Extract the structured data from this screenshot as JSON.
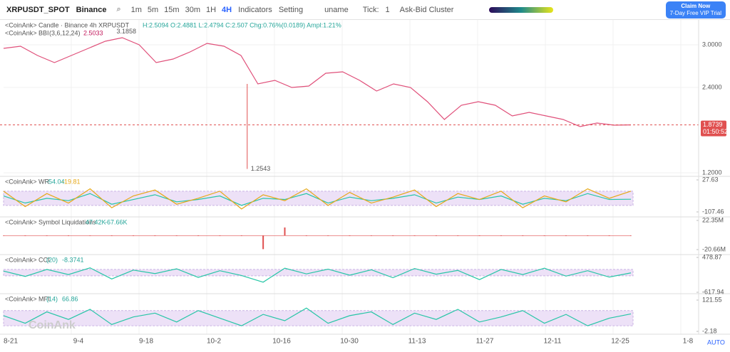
{
  "toolbar": {
    "symbol": "XRPUSDT_SPOT",
    "exchange": "Binance",
    "intervals": [
      "1m",
      "5m",
      "15m",
      "30m",
      "1H",
      "4H"
    ],
    "indicators": "Indicators",
    "setting": "Setting",
    "user": "uname",
    "tick_label": "Tick:",
    "tick_value": "1",
    "cluster": "Ask-Bid Cluster",
    "promo_title": "Claim Now",
    "promo_text": "7-Day Free VIP Trial"
  },
  "x_labels": [
    "8-21",
    "9-4",
    "9-18",
    "10-2",
    "10-16",
    "10-30",
    "11-13",
    "11-27",
    "12-11",
    "12-25",
    "1-8"
  ],
  "auto": "AUTO",
  "watermark": "CoinAnk",
  "chart_data": [
    {
      "type": "line",
      "legend": "<CoinAnk> Candle · Binance 4h XRPUSDT",
      "ohlc": "H:2.5094  O:2.4881  L:2.4794  C:2.507  Chg:0.76%(0.0189)  Ampl:1.21%",
      "bbi_legend": "<CoinAnk> BBI",
      "bbi_params": "(3,6,12,24)",
      "bbi_value": "2.5033",
      "ylim": [
        1.15,
        3.35
      ],
      "yticks": [
        {
          "value": 3,
          "label": "3.0000"
        },
        {
          "value": 2.4,
          "label": "2.4000"
        },
        {
          "value": 1.2,
          "label": "1.2000"
        }
      ],
      "series": [
        {
          "name": "XRPUSDT",
          "color": "#e0507a",
          "values": [
            2.95,
            2.98,
            2.85,
            2.75,
            2.85,
            2.95,
            3.05,
            3.1,
            3.0,
            2.75,
            2.8,
            2.9,
            3.02,
            2.98,
            2.85,
            2.45,
            2.5,
            2.4,
            2.42,
            2.6,
            2.62,
            2.5,
            2.35,
            2.45,
            2.4,
            2.2,
            1.95,
            2.15,
            2.2,
            2.15,
            2.0,
            2.05,
            2.0,
            1.95,
            1.85,
            1.9,
            1.87,
            1.8739
          ]
        }
      ],
      "high": {
        "value": 3.1858,
        "label": "3.1858"
      },
      "low": {
        "value": 1.2543,
        "label": "1.2543"
      },
      "last_price": 1.8739,
      "countdown": "01:50:52"
    },
    {
      "type": "line",
      "legend": "<CoinAnk> WR",
      "legend_values": [
        "-54.04",
        "-19.81"
      ],
      "ylim": [
        -107.46,
        27.63
      ],
      "yticks": [
        27.63,
        -107.46
      ],
      "band": [
        -80,
        -20
      ],
      "series": [
        {
          "name": "WR1",
          "color": "#26c6a6",
          "values": [
            -40,
            -70,
            -50,
            -60,
            -30,
            -75,
            -55,
            -35,
            -65,
            -55,
            -40,
            -80,
            -50,
            -55,
            -30,
            -70,
            -45,
            -60,
            -50,
            -35,
            -70,
            -45,
            -55,
            -40,
            -75,
            -50,
            -60,
            -30,
            -55,
            -54.04
          ]
        },
        {
          "name": "WR2",
          "color": "#e6a817",
          "values": [
            -20,
            -85,
            -30,
            -70,
            -10,
            -90,
            -40,
            -15,
            -75,
            -50,
            -20,
            -95,
            -35,
            -60,
            -10,
            -80,
            -25,
            -70,
            -45,
            -15,
            -85,
            -30,
            -55,
            -20,
            -90,
            -40,
            -65,
            -10,
            -50,
            -19.81
          ]
        }
      ]
    },
    {
      "type": "bar",
      "legend": "<CoinAnk> Symbol Liquidations",
      "legend_values": [
        "47.42K",
        "-67.66K"
      ],
      "ylim": [
        -20660000,
        22350000
      ],
      "yticks": [
        {
          "value": 22350000,
          "label": "22.35M"
        },
        {
          "value": -20660000,
          "label": "-20.66M"
        }
      ],
      "series": [
        {
          "name": "Liquidations",
          "color": "#e05050",
          "values": [
            50000,
            -80000,
            30000,
            -40000,
            60000,
            -30000,
            20000,
            -50000,
            40000,
            -20000,
            30000,
            -60000,
            -20000000,
            12000000,
            -90000,
            40000,
            -30000,
            50000,
            -20000,
            30000,
            -40000,
            20000,
            -60000,
            30000,
            -20000,
            40000,
            -30000,
            20000,
            -50000,
            47420
          ]
        }
      ]
    },
    {
      "type": "line",
      "legend": "<CoinAnk> CCI",
      "legend_values": [
        "(20)",
        "-8.3741"
      ],
      "ylim": [
        -617.94,
        478.87
      ],
      "yticks": [
        478.87,
        -617.94
      ],
      "band": [
        -100,
        100
      ],
      "series": [
        {
          "name": "CCI",
          "color": "#26c6a6",
          "values": [
            50,
            -120,
            100,
            -60,
            150,
            -200,
            80,
            -30,
            120,
            -150,
            60,
            -90,
            -300,
            140,
            -40,
            110,
            -80,
            90,
            -160,
            130,
            -50,
            70,
            -220,
            100,
            -60,
            140,
            -110,
            60,
            -140,
            -8.3741
          ]
        }
      ]
    },
    {
      "type": "line",
      "legend": "<CoinAnk> MFI",
      "legend_values": [
        "(14)",
        "66.86"
      ],
      "ylim": [
        -2.18,
        121.55
      ],
      "yticks": [
        121.55,
        -2.18
      ],
      "band": [
        20,
        80
      ],
      "series": [
        {
          "name": "MFI",
          "color": "#26c6a6",
          "values": [
            60,
            30,
            75,
            45,
            85,
            25,
            55,
            70,
            35,
            80,
            50,
            20,
            65,
            40,
            90,
            30,
            60,
            75,
            25,
            70,
            45,
            85,
            35,
            55,
            80,
            30,
            65,
            20,
            50,
            66.86
          ]
        }
      ]
    }
  ]
}
